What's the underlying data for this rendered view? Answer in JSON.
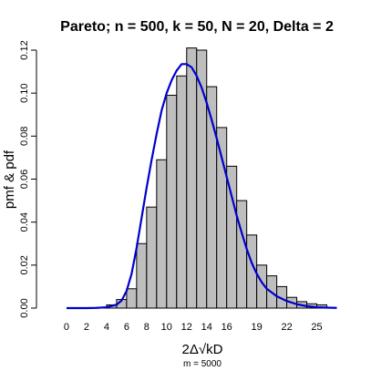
{
  "chart_data": {
    "type": "bar",
    "title": "Pareto; n = 500, k = 50, N = 20, Delta = 2",
    "xlabel": "2Δ√kD",
    "ylabel": "pmf & pdf",
    "subtitle": "m = 5000",
    "xlim": [
      -1,
      27.5
    ],
    "ylim": [
      0,
      0.12
    ],
    "x_ticks": [
      0,
      2,
      4,
      6,
      8,
      10,
      12,
      14,
      16,
      19,
      22,
      25
    ],
    "y_ticks": [
      0.0,
      0.02,
      0.04,
      0.06,
      0.08,
      0.1,
      0.12
    ],
    "y_tick_labels": [
      "0.00",
      "0.02",
      "0.04",
      "0.06",
      "0.08",
      "0.10",
      "0.12"
    ],
    "bin_width": 1,
    "bins_left": [
      3,
      4,
      5,
      6,
      7,
      8,
      9,
      10,
      11,
      12,
      13,
      14,
      15,
      16,
      17,
      18,
      19,
      20,
      21,
      22,
      23,
      24,
      25
    ],
    "values": [
      0.0003,
      0.0015,
      0.004,
      0.009,
      0.03,
      0.047,
      0.069,
      0.099,
      0.108,
      0.121,
      0.12,
      0.103,
      0.084,
      0.066,
      0.05,
      0.034,
      0.02,
      0.015,
      0.01,
      0.005,
      0.003,
      0.002,
      0.0015
    ],
    "bar_color": "#bebebe",
    "curve": {
      "color": "#0000cd",
      "x": [
        0,
        2,
        3,
        4,
        5,
        5.5,
        6,
        6.5,
        7,
        7.5,
        8,
        8.5,
        9,
        9.5,
        10,
        10.5,
        11,
        11.5,
        12,
        12.5,
        13,
        13.5,
        14,
        14.5,
        15,
        15.5,
        16,
        16.5,
        17,
        17.5,
        18,
        18.5,
        19,
        19.5,
        20,
        21,
        22,
        23,
        24,
        25,
        26,
        27
      ],
      "y": [
        0,
        0,
        0.0001,
        0.0004,
        0.0016,
        0.0035,
        0.008,
        0.016,
        0.028,
        0.042,
        0.056,
        0.069,
        0.081,
        0.092,
        0.1,
        0.106,
        0.1105,
        0.1135,
        0.1135,
        0.112,
        0.108,
        0.1025,
        0.0955,
        0.0875,
        0.079,
        0.07,
        0.061,
        0.052,
        0.043,
        0.035,
        0.0275,
        0.021,
        0.016,
        0.012,
        0.009,
        0.0055,
        0.0033,
        0.0018,
        0.0009,
        0.0004,
        0.0002,
        0.0001
      ]
    }
  }
}
